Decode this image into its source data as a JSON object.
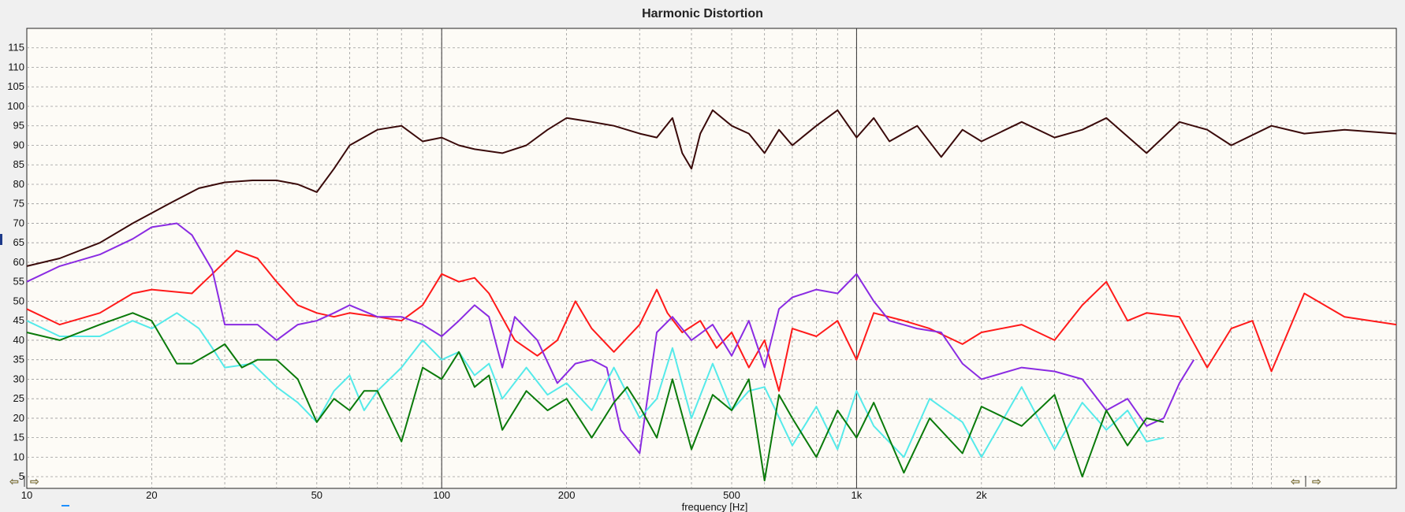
{
  "chart_data": {
    "type": "line",
    "title": "Harmonic Distortion",
    "xlabel": "frequency [Hz]",
    "ylabel": "",
    "x_scale": "log",
    "xlim": [
      10,
      20000
    ],
    "ylim": [
      2,
      120
    ],
    "x_ticks": [
      {
        "value": 10,
        "label": "10"
      },
      {
        "value": 20,
        "label": "20"
      },
      {
        "value": 50,
        "label": "50"
      },
      {
        "value": 100,
        "label": "100"
      },
      {
        "value": 200,
        "label": "200"
      },
      {
        "value": 500,
        "label": "500"
      },
      {
        "value": 1000,
        "label": "1k"
      },
      {
        "value": 2000,
        "label": "2k"
      }
    ],
    "y_ticks": [
      5,
      10,
      15,
      20,
      25,
      30,
      35,
      40,
      45,
      50,
      55,
      60,
      65,
      70,
      75,
      80,
      85,
      90,
      95,
      100,
      105,
      110,
      115
    ],
    "grid": true,
    "series": [
      {
        "color": "#3a0a0a",
        "x": [
          10,
          12,
          15,
          18,
          22,
          26,
          30,
          35,
          40,
          45,
          50,
          55,
          60,
          70,
          80,
          90,
          100,
          110,
          120,
          140,
          160,
          180,
          200,
          230,
          260,
          300,
          330,
          360,
          380,
          400,
          420,
          450,
          500,
          550,
          600,
          650,
          700,
          800,
          900,
          1000,
          1100,
          1200,
          1400,
          1600,
          1800,
          2000,
          2500,
          3000,
          3500,
          4000,
          5000,
          6000,
          7000,
          8000,
          10000,
          12000,
          15000,
          20000
        ],
        "y": [
          59,
          61,
          65,
          70,
          75,
          79,
          80.5,
          81,
          81,
          80,
          78,
          84,
          90,
          94,
          95,
          91,
          92,
          90,
          89,
          88,
          90,
          94,
          97,
          96,
          95,
          93,
          92,
          97,
          88,
          84,
          93,
          99,
          95,
          93,
          88,
          94,
          90,
          95,
          99,
          92,
          97,
          91,
          95,
          87,
          94,
          91,
          96,
          92,
          94,
          97,
          88,
          96,
          94,
          90,
          95,
          93,
          94,
          93
        ]
      },
      {
        "color": "#ff1a1a",
        "x": [
          10,
          12,
          15,
          18,
          20,
          25,
          28,
          32,
          36,
          40,
          45,
          50,
          55,
          60,
          70,
          80,
          90,
          100,
          110,
          120,
          130,
          150,
          170,
          190,
          210,
          230,
          260,
          300,
          330,
          350,
          380,
          420,
          460,
          500,
          550,
          600,
          650,
          700,
          800,
          900,
          1000,
          1100,
          1300,
          1500,
          1800,
          2000,
          2500,
          3000,
          3500,
          4000,
          4500,
          5000,
          6000,
          7000,
          8000,
          9000,
          10000,
          12000,
          15000,
          20000
        ],
        "y": [
          48,
          44,
          47,
          52,
          53,
          52,
          57,
          63,
          61,
          55,
          49,
          47,
          46,
          47,
          46,
          45,
          49,
          57,
          55,
          56,
          52,
          40,
          36,
          40,
          50,
          43,
          37,
          44,
          53,
          47,
          42,
          45,
          38,
          42,
          33,
          40,
          27,
          43,
          41,
          45,
          35,
          47,
          45,
          43,
          39,
          42,
          44,
          40,
          49,
          55,
          45,
          47,
          46,
          33,
          43,
          45,
          32,
          52,
          46,
          44
        ]
      },
      {
        "color": "#8a2be2",
        "x": [
          10,
          12,
          15,
          18,
          20,
          23,
          25,
          28,
          30,
          33,
          36,
          40,
          45,
          50,
          55,
          60,
          70,
          80,
          90,
          100,
          110,
          120,
          130,
          140,
          150,
          170,
          190,
          210,
          230,
          250,
          270,
          300,
          330,
          360,
          400,
          450,
          500,
          550,
          600,
          650,
          700,
          800,
          900,
          1000,
          1100,
          1200,
          1400,
          1600,
          1800,
          2000,
          2500,
          3000,
          3500,
          4000,
          4500,
          5000,
          5500,
          6000,
          6500
        ],
        "y": [
          55,
          59,
          62,
          66,
          69,
          70,
          67,
          58,
          44,
          44,
          44,
          40,
          44,
          45,
          47,
          49,
          46,
          46,
          44,
          41,
          45,
          49,
          46,
          33,
          46,
          40,
          29,
          34,
          35,
          33,
          17,
          11,
          42,
          46,
          40,
          44,
          36,
          45,
          33,
          48,
          51,
          53,
          52,
          57,
          50,
          45,
          43,
          42,
          34,
          30,
          33,
          32,
          30,
          22,
          25,
          18,
          20,
          29,
          35
        ]
      },
      {
        "color": "#55eaea",
        "x": [
          10,
          12,
          15,
          18,
          20,
          23,
          26,
          28,
          30,
          35,
          40,
          45,
          50,
          55,
          60,
          65,
          70,
          80,
          90,
          100,
          110,
          120,
          130,
          140,
          160,
          180,
          200,
          230,
          260,
          300,
          330,
          360,
          400,
          450,
          500,
          550,
          600,
          700,
          800,
          900,
          1000,
          1100,
          1300,
          1500,
          1800,
          2000,
          2500,
          3000,
          3500,
          4000,
          4500,
          5000,
          5500
        ],
        "y": [
          45,
          41,
          41,
          45,
          43,
          47,
          43,
          38,
          33,
          34,
          28,
          24,
          19,
          27,
          31,
          22,
          27,
          33,
          40,
          35,
          37,
          31,
          34,
          25,
          33,
          26,
          29,
          22,
          33,
          20,
          25,
          38,
          20,
          34,
          22,
          27,
          28,
          13,
          23,
          12,
          27,
          18,
          10,
          25,
          19,
          10,
          28,
          12,
          24,
          17,
          22,
          14,
          15
        ]
      },
      {
        "color": "#0a7a0a",
        "x": [
          10,
          12,
          15,
          18,
          20,
          23,
          25,
          28,
          30,
          33,
          36,
          40,
          45,
          50,
          55,
          60,
          65,
          70,
          80,
          90,
          100,
          110,
          120,
          130,
          140,
          160,
          180,
          200,
          230,
          260,
          280,
          300,
          330,
          360,
          400,
          450,
          500,
          550,
          600,
          650,
          700,
          800,
          900,
          1000,
          1100,
          1300,
          1500,
          1800,
          2000,
          2500,
          3000,
          3500,
          4000,
          4500,
          5000,
          5500
        ],
        "y": [
          42,
          40,
          44,
          47,
          45,
          34,
          34,
          37,
          39,
          33,
          35,
          35,
          30,
          19,
          25,
          22,
          27,
          27,
          14,
          33,
          30,
          37,
          28,
          31,
          17,
          27,
          22,
          25,
          15,
          24,
          28,
          23,
          15,
          30,
          12,
          26,
          22,
          30,
          4,
          26,
          20,
          10,
          22,
          15,
          24,
          6,
          20,
          11,
          23,
          18,
          26,
          5,
          22,
          13,
          20,
          19
        ]
      }
    ]
  }
}
